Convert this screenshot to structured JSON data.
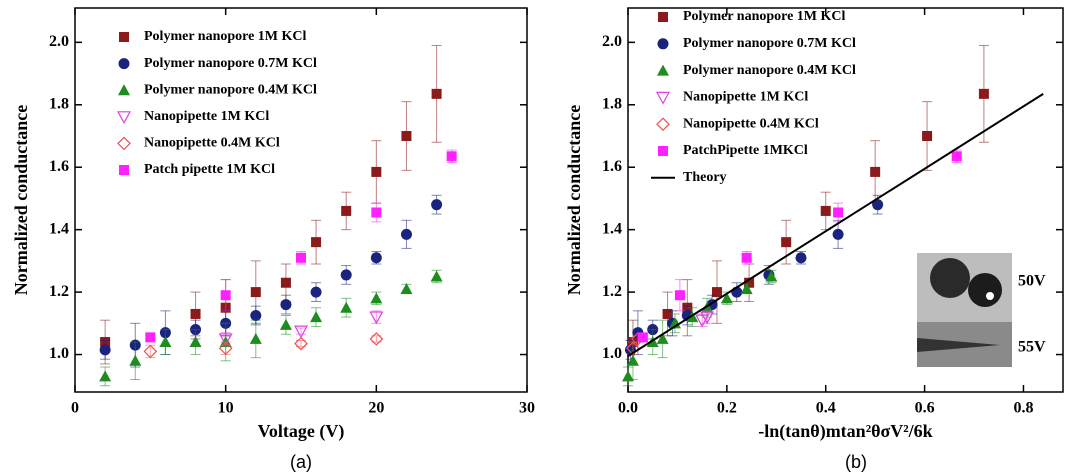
{
  "chart_data": [
    {
      "type": "scatter",
      "caption": "(a)",
      "x_label": "Voltage (V)",
      "y_label": "Normalized conductance",
      "xlim": [
        0,
        30
      ],
      "xticks": [
        0,
        10,
        20,
        30
      ],
      "ylim": [
        0.88,
        2.11
      ],
      "yticks": [
        {
          "value": 1.0,
          "label": "1.0"
        },
        1.2,
        1.4,
        1.6,
        1.8,
        {
          "value": 2.0,
          "label": "2.0"
        }
      ],
      "series": [
        {
          "name": "Polymer nanopore 1M KCl",
          "color": "#8b1a1a",
          "marker": "square",
          "x": [
            2,
            8,
            10,
            12,
            14,
            16,
            18,
            20,
            22,
            24
          ],
          "values": [
            1.04,
            1.13,
            1.15,
            1.2,
            1.23,
            1.36,
            1.46,
            1.585,
            1.7,
            1.835
          ],
          "errors": [
            0.07,
            0.07,
            0.09,
            0.1,
            0.06,
            0.07,
            0.06,
            0.1,
            0.11,
            0.155
          ]
        },
        {
          "name": "Polymer nanopore 0.7M KCl",
          "color": "#1a237e",
          "marker": "circle",
          "x": [
            2,
            4,
            6,
            8,
            10,
            12,
            14,
            16,
            18,
            20,
            22,
            24
          ],
          "values": [
            1.015,
            1.03,
            1.07,
            1.08,
            1.1,
            1.125,
            1.16,
            1.2,
            1.255,
            1.31,
            1.385,
            1.48
          ],
          "errors": [
            0.03,
            0.07,
            0.07,
            0.03,
            0.04,
            0.03,
            0.03,
            0.03,
            0.03,
            0.02,
            0.045,
            0.03
          ]
        },
        {
          "name": "Polymer nanopore 0.4M KCl",
          "color": "#1e8c1e",
          "marker": "triangle",
          "x": [
            2,
            4,
            6,
            8,
            10,
            12,
            14,
            16,
            18,
            20,
            22,
            24
          ],
          "values": [
            0.93,
            0.98,
            1.04,
            1.04,
            1.04,
            1.05,
            1.095,
            1.12,
            1.15,
            1.18,
            1.21,
            1.25
          ],
          "errors": [
            0.03,
            0.06,
            0.04,
            0.04,
            0.06,
            0.06,
            0.03,
            0.03,
            0.03,
            0.02,
            0.015,
            0.02
          ]
        },
        {
          "name": "Nanopipette 1M KCl",
          "color": "#e040e0",
          "marker": "triangle-down-open",
          "x": [
            10,
            15,
            20
          ],
          "values": [
            1.05,
            1.075,
            1.12
          ],
          "errors": [
            0.02,
            0.01,
            0.02
          ]
        },
        {
          "name": "Nanopipette 0.4M KCl",
          "color": "#f05050",
          "marker": "diamond-open",
          "x": [
            5,
            10,
            15,
            20
          ],
          "values": [
            1.01,
            1.02,
            1.035,
            1.05
          ],
          "errors": [
            0.02,
            0.02,
            0.01,
            0.01
          ]
        },
        {
          "name": "Patch pipette 1M KCl",
          "color": "#ff20ff",
          "marker": "square",
          "x": [
            5,
            10,
            15,
            20,
            25
          ],
          "values": [
            1.055,
            1.19,
            1.31,
            1.455,
            1.635
          ],
          "errors": [
            0.01,
            0.05,
            0.02,
            0.03,
            0.02
          ]
        }
      ]
    },
    {
      "type": "scatter",
      "caption": "(b)",
      "x_label": "-ln(tanθ)mtan²θσV²/6k",
      "y_label": "Normalized conductance",
      "xlim": [
        0,
        0.88
      ],
      "xticks": [
        {
          "value": 0,
          "label": "0.0"
        },
        0.2,
        0.4,
        0.6,
        0.8
      ],
      "ylim": [
        0.88,
        2.11
      ],
      "yticks": [
        {
          "value": 1.0,
          "label": "1.0"
        },
        1.2,
        1.4,
        1.6,
        1.8,
        {
          "value": 2.0,
          "label": "2.0"
        }
      ],
      "inset_labels": [
        "50V",
        "55V"
      ],
      "series": [
        {
          "name": "Polymer nanopore 1M KCl",
          "color": "#8b1a1a",
          "marker": "square",
          "x": [
            0.01,
            0.08,
            0.12,
            0.18,
            0.245,
            0.32,
            0.4,
            0.5,
            0.605,
            0.72
          ],
          "values": [
            1.04,
            1.13,
            1.15,
            1.2,
            1.23,
            1.36,
            1.46,
            1.585,
            1.7,
            1.835
          ],
          "errors": [
            0.07,
            0.07,
            0.09,
            0.1,
            0.06,
            0.07,
            0.06,
            0.1,
            0.11,
            0.155
          ]
        },
        {
          "name": "Polymer nanopore 0.7M KCl",
          "color": "#1a237e",
          "marker": "circle",
          "x": [
            0.005,
            0.02,
            0.05,
            0.09,
            0.12,
            0.17,
            0.22,
            0.285,
            0.35,
            0.425,
            0.505
          ],
          "values": [
            1.015,
            1.07,
            1.08,
            1.1,
            1.125,
            1.16,
            1.2,
            1.255,
            1.31,
            1.385,
            1.48
          ],
          "errors": [
            0.03,
            0.07,
            0.03,
            0.04,
            0.03,
            0.03,
            0.03,
            0.03,
            0.02,
            0.045,
            0.03
          ]
        },
        {
          "name": "Polymer nanopore 0.4M KCl",
          "color": "#1e8c1e",
          "marker": "triangle",
          "x": [
            0.0,
            0.01,
            0.05,
            0.07,
            0.095,
            0.13,
            0.16,
            0.2,
            0.24,
            0.29
          ],
          "values": [
            0.93,
            0.98,
            1.04,
            1.05,
            1.1,
            1.12,
            1.15,
            1.18,
            1.21,
            1.25
          ],
          "errors": [
            0.03,
            0.06,
            0.04,
            0.06,
            0.03,
            0.03,
            0.03,
            0.02,
            0.015,
            0.02
          ]
        },
        {
          "name": "Nanopipette 1M KCl",
          "color": "#e040e0",
          "marker": "triangle-down-open",
          "x": [
            0.15,
            0.16
          ],
          "values": [
            1.11,
            1.12
          ],
          "errors": [
            0.02,
            0.02
          ]
        },
        {
          "name": "Nanopipette 0.4M KCl",
          "color": "#f05050",
          "marker": "diamond-open",
          "x": [
            0.01,
            0.02
          ],
          "values": [
            1.02,
            1.05
          ],
          "errors": [
            0.02,
            0.01
          ]
        },
        {
          "name": "PatchPipette 1MKCl",
          "color": "#ff20ff",
          "marker": "square",
          "x": [
            0.03,
            0.105,
            0.24,
            0.425,
            0.665
          ],
          "values": [
            1.055,
            1.19,
            1.31,
            1.455,
            1.635
          ],
          "errors": [
            0.01,
            0.05,
            0.02,
            0.03,
            0.02
          ]
        },
        {
          "name": "Theory",
          "color": "#000000",
          "marker": "line",
          "x": [
            0,
            0.84
          ],
          "values": [
            0.995,
            1.835
          ]
        }
      ]
    }
  ]
}
